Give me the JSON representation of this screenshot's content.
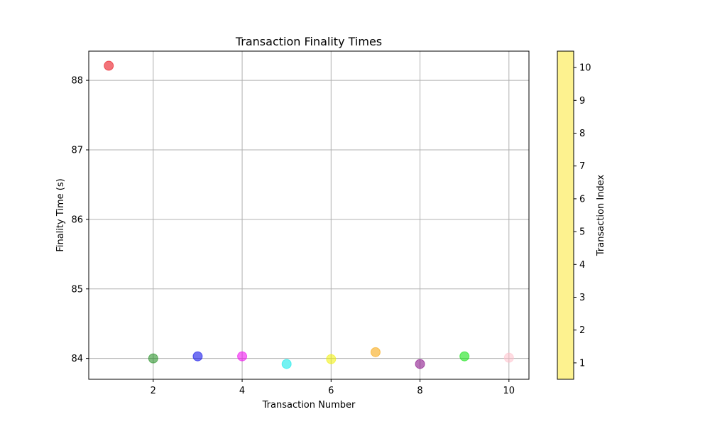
{
  "chart_data": {
    "type": "scatter",
    "title": "Transaction Finality Times",
    "xlabel": "Transaction Number",
    "ylabel": "Finality Time (s)",
    "xlim": [
      0.55,
      10.45
    ],
    "ylim": [
      83.7,
      88.42
    ],
    "xticks": [
      2,
      4,
      6,
      8,
      10
    ],
    "yticks": [
      84,
      85,
      86,
      87,
      88
    ],
    "grid": true,
    "series": [
      {
        "x": [
          1,
          2,
          3,
          4,
          5,
          6,
          7,
          8,
          9,
          10
        ],
        "y": [
          88.21,
          84.0,
          84.03,
          84.03,
          83.92,
          83.99,
          84.09,
          83.92,
          84.03,
          84.01
        ],
        "colors": [
          "#e8000b",
          "#1a8a1a",
          "#0000e8",
          "#ee00ee",
          "#00e8e8",
          "#f0f000",
          "#f5a000",
          "#800080",
          "#00e000",
          "#ffc0cb"
        ]
      }
    ],
    "colorbar": {
      "label": "Transaction Index",
      "range": [
        0.5,
        10.5
      ],
      "ticks": [
        1,
        2,
        3,
        4,
        5,
        6,
        7,
        8,
        9,
        10
      ],
      "color": "#fdf28f"
    }
  }
}
